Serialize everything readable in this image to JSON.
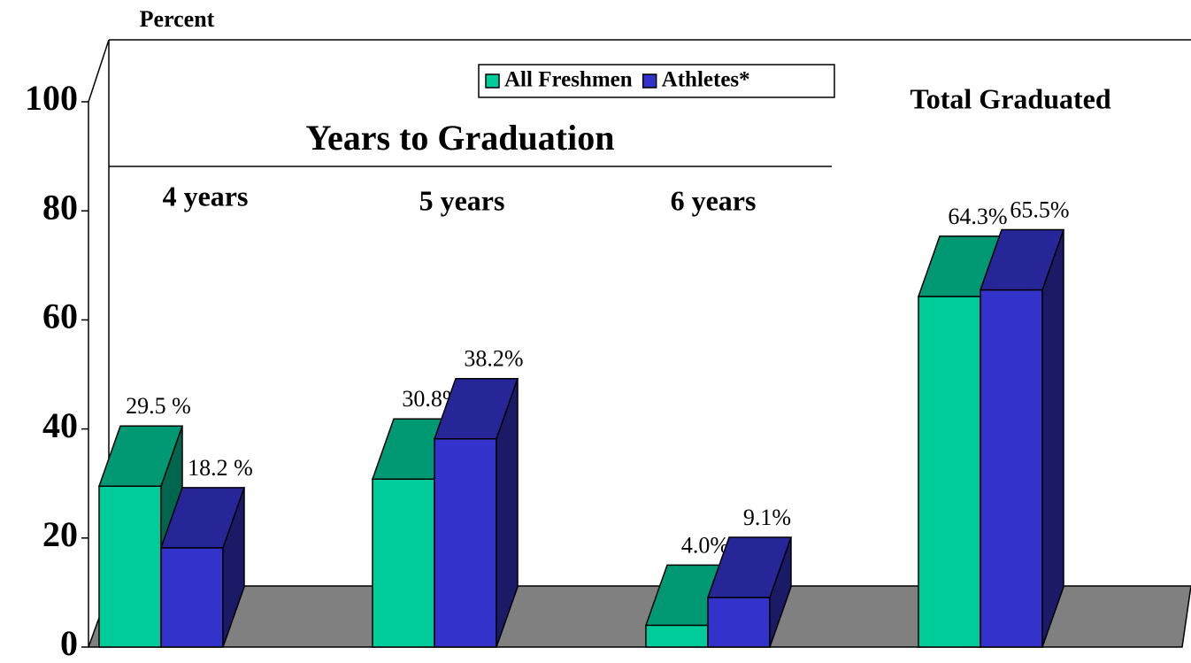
{
  "chart_data": {
    "type": "bar3d",
    "y_label": "Percent",
    "annotation": "Years to Graduation",
    "categories": [
      "4 years",
      "5 years",
      "6 years",
      "Total Graduated"
    ],
    "series": [
      {
        "name": "All Freshmen",
        "color": "#00cc99",
        "values": [
          29.5,
          30.8,
          4.0,
          64.3
        ],
        "value_labels": [
          "29.5 %",
          "30.8%",
          "4.0%",
          "64.3%"
        ]
      },
      {
        "name": "Athletes*",
        "color": "#3333cc",
        "values": [
          18.2,
          38.2,
          9.1,
          65.5
        ],
        "value_labels": [
          "18.2 %",
          "38.2%",
          "9.1%",
          "65.5%"
        ]
      }
    ],
    "ylim": [
      0,
      100
    ],
    "yticks": [
      0,
      20,
      40,
      60,
      80,
      100
    ],
    "legend": "top"
  }
}
